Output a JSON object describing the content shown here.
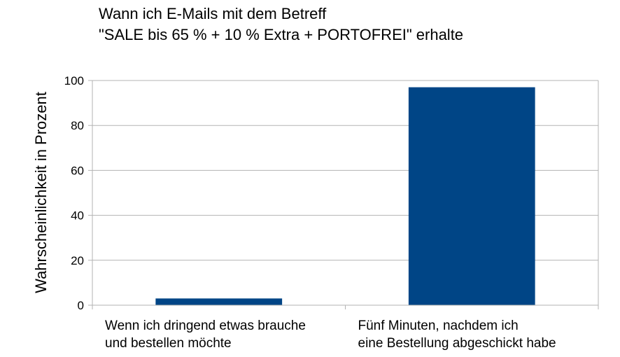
{
  "chart_data": {
    "type": "bar",
    "title": [
      "Wann ich E-Mails mit dem Betreff",
      "\"SALE bis 65 % + 10 % Extra + PORTOFREI\" erhalte"
    ],
    "ylabel": "Wahrscheinlichkeit in Prozent",
    "xlabel": "",
    "categories": [
      [
        "Wenn ich dringend etwas brauche",
        "und bestellen möchte"
      ],
      [
        "Fünf Minuten, nachdem ich",
        "eine Bestellung abgeschickt habe"
      ]
    ],
    "values": [
      3,
      97
    ],
    "ylim": [
      0,
      100
    ],
    "yticks": [
      0,
      20,
      40,
      60,
      80,
      100
    ],
    "grid": true,
    "legend": "none",
    "bar_color": "#004586",
    "grid_color": "#b3b3b3"
  }
}
